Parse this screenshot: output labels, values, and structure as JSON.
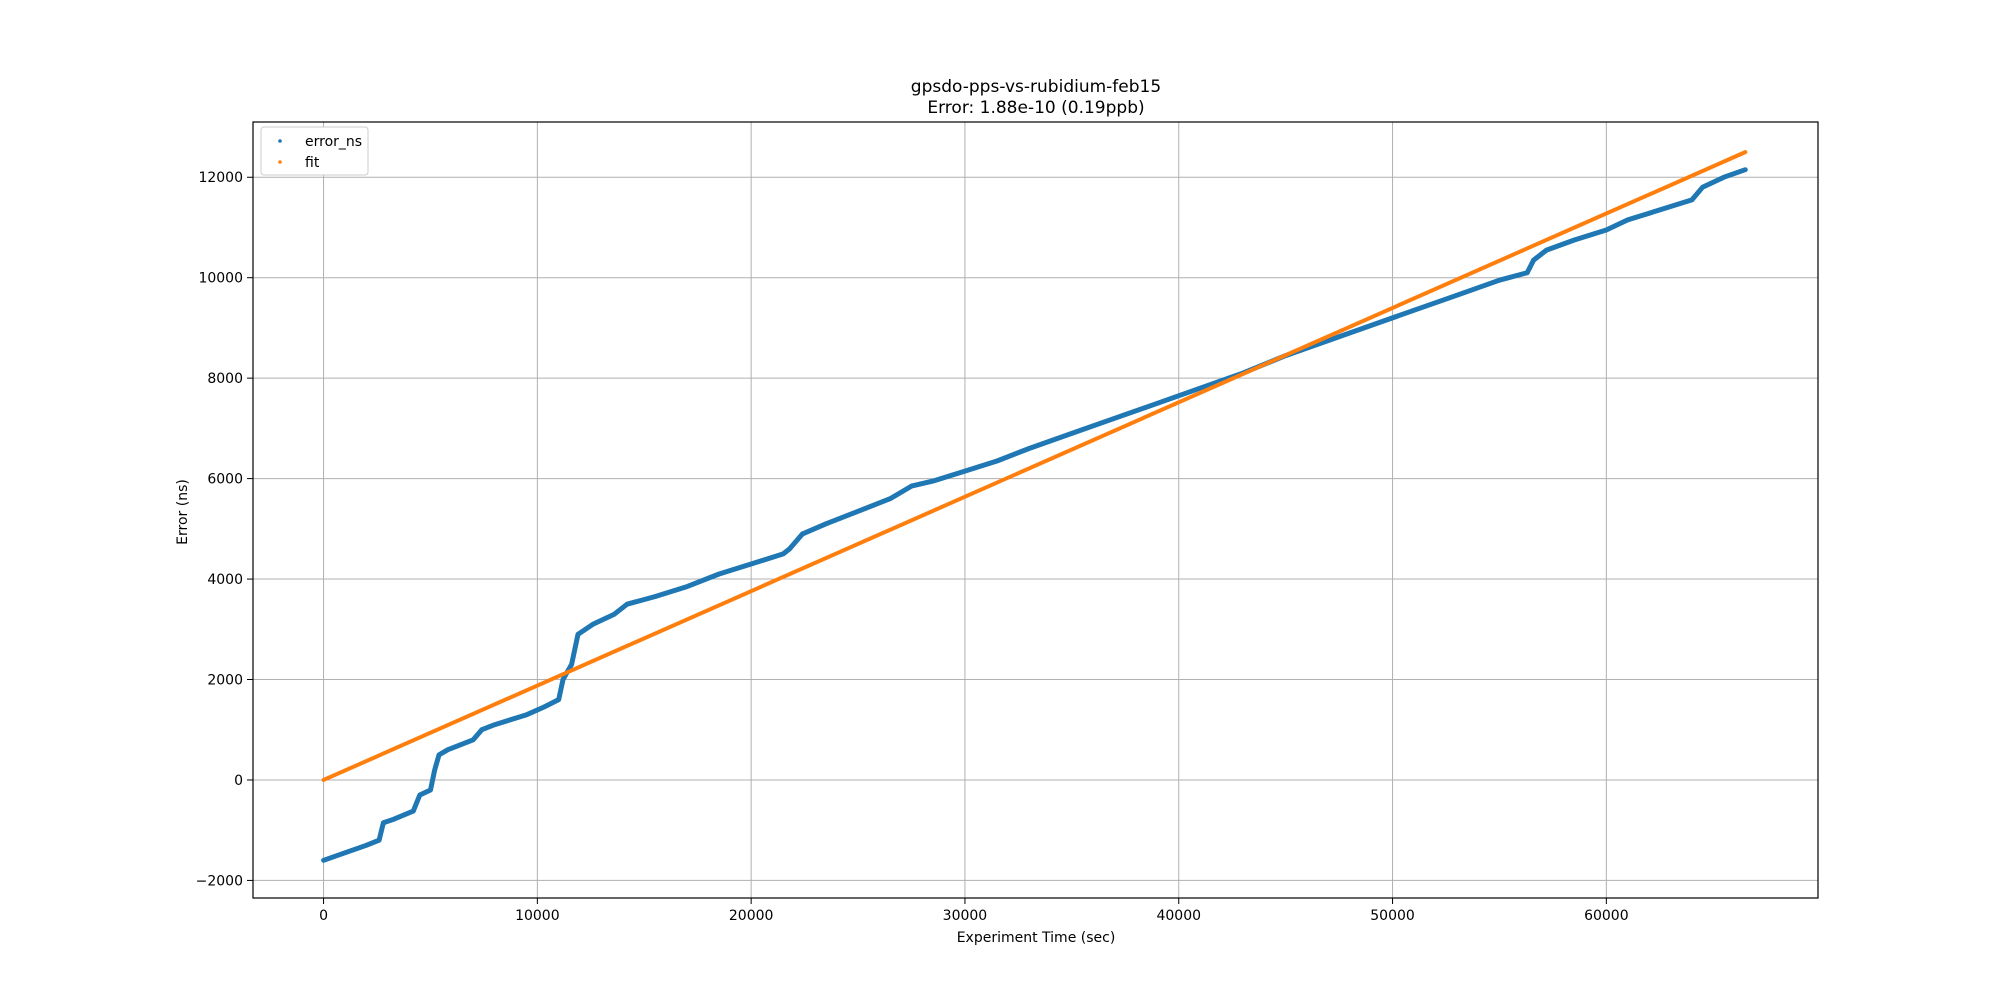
{
  "chart_data": {
    "type": "scatter",
    "title": "gpsdo-pps-vs-rubidium-feb15",
    "subtitle": "Error: 1.88e-10 (0.19ppb)",
    "xlabel": "Experiment Time (sec)",
    "ylabel": "Error (ns)",
    "xlim": [
      -3300,
      69900
    ],
    "ylim": [
      -2350,
      13100
    ],
    "xticks": [
      0,
      10000,
      20000,
      30000,
      40000,
      50000,
      60000
    ],
    "xtick_labels": [
      "0",
      "10000",
      "20000",
      "30000",
      "40000",
      "50000",
      "60000"
    ],
    "yticks": [
      -2000,
      0,
      2000,
      4000,
      6000,
      8000,
      10000,
      12000
    ],
    "ytick_labels": [
      "−2000",
      "0",
      "2000",
      "4000",
      "6000",
      "8000",
      "10000",
      "12000"
    ],
    "grid": true,
    "legend": "upper-left",
    "series": [
      {
        "name": "error_ns",
        "color": "#1f77b4",
        "x": [
          0,
          1000,
          2000,
          2600,
          2800,
          3300,
          4200,
          4500,
          5000,
          5200,
          5400,
          5800,
          7000,
          7400,
          8000,
          9500,
          10300,
          11000,
          11200,
          11600,
          11900,
          12600,
          13600,
          14200,
          15500,
          17000,
          18500,
          20000,
          21500,
          21800,
          22400,
          23500,
          25000,
          26500,
          27500,
          28500,
          30000,
          31500,
          33000,
          35000,
          37000,
          39000,
          41000,
          43000,
          45000,
          47000,
          49000,
          51000,
          53000,
          55000,
          56300,
          56600,
          57200,
          58500,
          60000,
          61000,
          62500,
          64000,
          64500,
          65500,
          66500
        ],
        "y": [
          -1600,
          -1450,
          -1300,
          -1200,
          -850,
          -780,
          -620,
          -300,
          -200,
          200,
          500,
          600,
          800,
          1000,
          1100,
          1300,
          1450,
          1600,
          2000,
          2300,
          2900,
          3100,
          3300,
          3500,
          3650,
          3850,
          4100,
          4300,
          4500,
          4600,
          4900,
          5100,
          5350,
          5600,
          5850,
          5950,
          6150,
          6350,
          6600,
          6900,
          7200,
          7500,
          7800,
          8100,
          8450,
          8750,
          9050,
          9350,
          9650,
          9950,
          10100,
          10350,
          10550,
          10750,
          10950,
          11150,
          11350,
          11550,
          11800,
          12000,
          12150
        ]
      },
      {
        "name": "fit",
        "color": "#ff7f0e",
        "x": [
          0,
          66500
        ],
        "y": [
          0,
          12500
        ]
      }
    ]
  }
}
